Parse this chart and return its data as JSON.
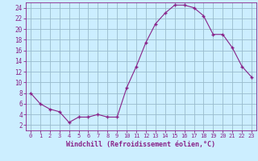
{
  "x": [
    0,
    1,
    2,
    3,
    4,
    5,
    6,
    7,
    8,
    9,
    10,
    11,
    12,
    13,
    14,
    15,
    16,
    17,
    18,
    19,
    20,
    21,
    22,
    23
  ],
  "y": [
    8,
    6,
    5,
    4.5,
    2.5,
    3.5,
    3.5,
    4,
    3.5,
    3.5,
    9,
    13,
    17.5,
    21,
    23,
    24.5,
    24.5,
    24,
    22.5,
    19,
    19,
    16.5,
    13,
    11
  ],
  "line_color": "#882288",
  "marker": "+",
  "background_color": "#cceeff",
  "grid_color": "#99bbcc",
  "xlabel": "Windchill (Refroidissement éolien,°C)",
  "xlabel_color": "#882288",
  "tick_color": "#882288",
  "spine_color": "#882288",
  "ylim": [
    1,
    25
  ],
  "xlim": [
    -0.5,
    23.5
  ],
  "yticks": [
    2,
    4,
    6,
    8,
    10,
    12,
    14,
    16,
    18,
    20,
    22,
    24
  ],
  "xticks": [
    0,
    1,
    2,
    3,
    4,
    5,
    6,
    7,
    8,
    9,
    10,
    11,
    12,
    13,
    14,
    15,
    16,
    17,
    18,
    19,
    20,
    21,
    22,
    23
  ]
}
